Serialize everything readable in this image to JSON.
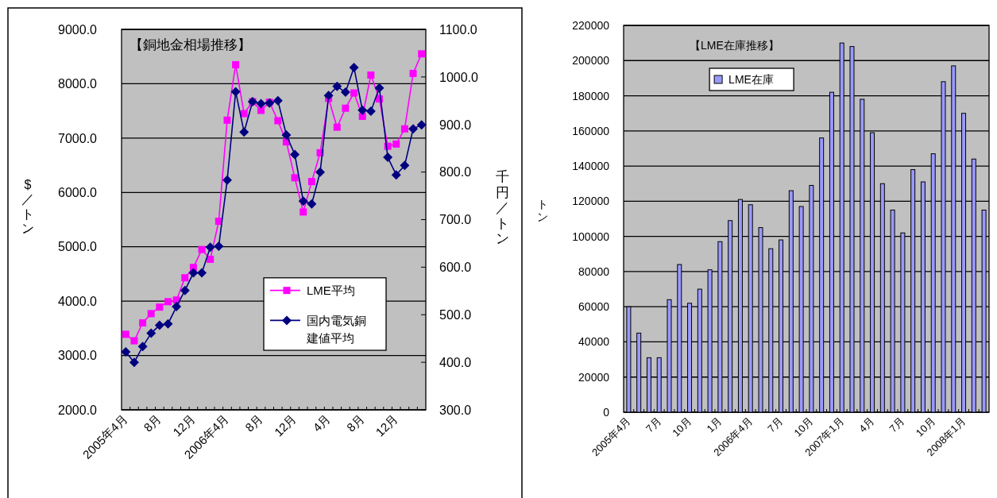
{
  "chart_data": [
    {
      "type": "line",
      "title": "【銅地金相場推移】",
      "ylabel": "$／トン",
      "y2label": "千円／トン",
      "categories": [
        "2005年4月",
        null,
        null,
        null,
        "8月",
        null,
        null,
        null,
        "12月",
        null,
        null,
        null,
        "2006年4月",
        null,
        null,
        null,
        "8月",
        null,
        null,
        null,
        "12月",
        null,
        null,
        null,
        "4月",
        null,
        null,
        null,
        "8月",
        null,
        null,
        null,
        "12月",
        null,
        null,
        null
      ],
      "series": [
        {
          "name": "LME平均",
          "color": "#ff00ff",
          "marker": "square",
          "values": [
            3390,
            3270,
            3600,
            3770,
            3890,
            3990,
            4020,
            4430,
            4620,
            4950,
            4770,
            5470,
            7330,
            8350,
            7450,
            7670,
            7510,
            7660,
            7320,
            6930,
            6270,
            5640,
            6200,
            6730,
            7730,
            7200,
            7550,
            7830,
            7400,
            8160,
            7720,
            6850,
            6890,
            7170,
            8190,
            8550
          ]
        },
        {
          "name": "国内電気銅建値平均",
          "color": "#000080",
          "marker": "diamond",
          "axis": "y2",
          "values": [
            422,
            400,
            433,
            461,
            478,
            481,
            517,
            551,
            588,
            588,
            642,
            644,
            783,
            969,
            884,
            948,
            944,
            945,
            950,
            878,
            837,
            739,
            733,
            800,
            961,
            980,
            968,
            1020,
            930,
            928,
            977,
            831,
            794,
            814,
            891,
            899
          ]
        }
      ],
      "ylim": [
        2000,
        9000
      ],
      "yticks": [
        {
          "value": 2000,
          "label": "2000.0"
        },
        {
          "value": 3000,
          "label": "3000.0"
        },
        {
          "value": 4000,
          "label": "4000.0"
        },
        {
          "value": 5000,
          "label": "5000.0"
        },
        {
          "value": 6000,
          "label": "6000.0"
        },
        {
          "value": 7000,
          "label": "7000.0"
        },
        {
          "value": 8000,
          "label": "8000.0"
        },
        {
          "value": 9000,
          "label": "9000.0"
        }
      ],
      "y2lim": [
        300,
        1100
      ],
      "y2ticks": [
        {
          "value": 300,
          "label": "300.0"
        },
        {
          "value": 400,
          "label": "400.0"
        },
        {
          "value": 500,
          "label": "500.0"
        },
        {
          "value": 600,
          "label": "600.0"
        },
        {
          "value": 700,
          "label": "700.0"
        },
        {
          "value": 800,
          "label": "800.0"
        },
        {
          "value": 900,
          "label": "900.0"
        },
        {
          "value": 1000,
          "label": "1000.0"
        },
        {
          "value": 1100,
          "label": "1100.0"
        }
      ],
      "grid": "y",
      "legend": "right"
    },
    {
      "type": "bar",
      "title": "【LME在庫推移】",
      "ylabel": "トン",
      "categories": [
        "2005年4月",
        null,
        null,
        "7月",
        null,
        null,
        "10月",
        null,
        null,
        "1月",
        null,
        null,
        "2006年4月",
        null,
        null,
        "7月",
        null,
        null,
        "10月",
        null,
        null,
        "2007年1月",
        null,
        null,
        "4月",
        null,
        null,
        "7月",
        null,
        null,
        "10月",
        null,
        null,
        "2008年1月",
        null,
        null
      ],
      "series": [
        {
          "name": "LME在庫",
          "color": "#9999ff",
          "values": [
            60000,
            45000,
            31000,
            31000,
            64000,
            84000,
            62000,
            70000,
            81000,
            97000,
            109000,
            121000,
            118000,
            105000,
            93000,
            98000,
            126000,
            117000,
            129000,
            156000,
            182000,
            210000,
            208000,
            178000,
            159000,
            130000,
            115000,
            102000,
            138000,
            131000,
            147000,
            188000,
            197000,
            170000,
            144000,
            115000
          ]
        }
      ],
      "ylim": [
        0,
        220000
      ],
      "yticks": [
        0,
        20000,
        40000,
        60000,
        80000,
        100000,
        120000,
        140000,
        160000,
        180000,
        200000,
        220000
      ],
      "grid": "y",
      "legend": "top left"
    }
  ]
}
